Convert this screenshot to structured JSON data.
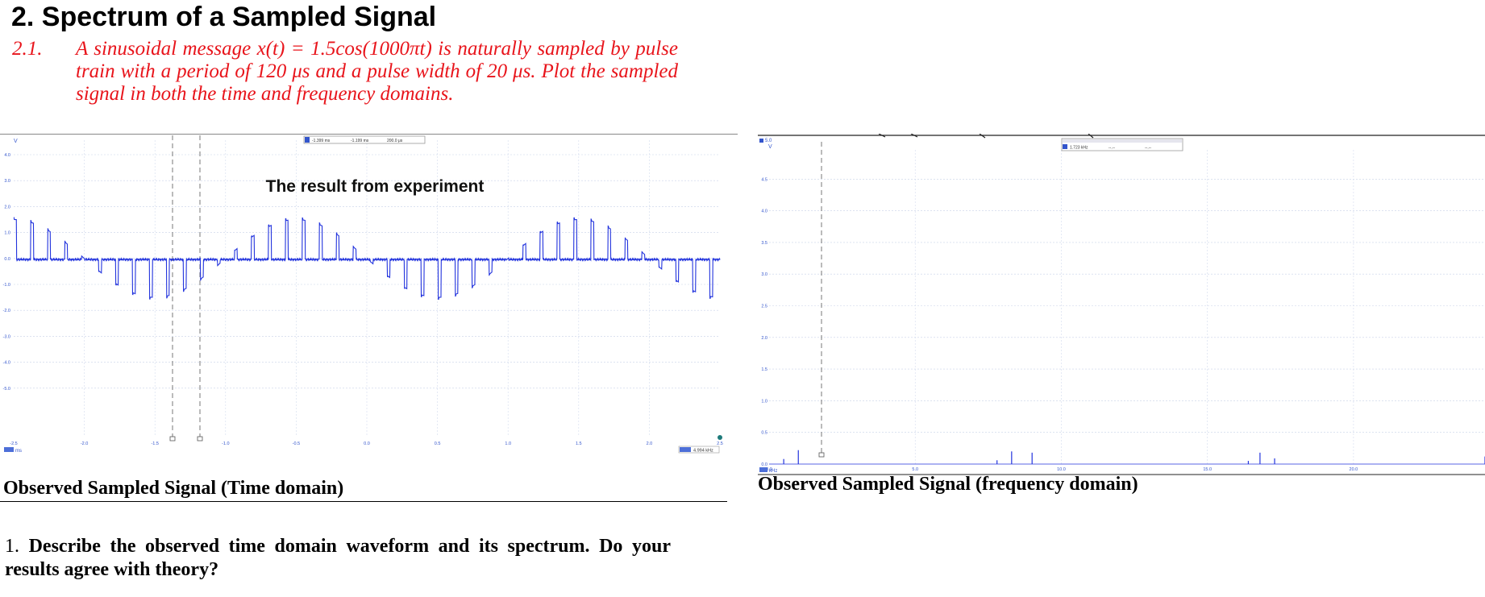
{
  "heading": "2. Spectrum of a Sampled Signal",
  "question_number": "2.1.",
  "question_text": "A sinusoidal message x(t) = 1.5cos(1000πt) is naturally sampled by pulse train with a period of 120 μs and a pulse width of 20 μs. Plot the sampled signal in both the time and frequency domains.",
  "time_scope": {
    "overlay_label": "The result from experiment",
    "unit_v": "V",
    "unit_ms": "ms",
    "y_ticks": [
      "4.0",
      "3.0",
      "2.0",
      "1.0",
      "0.0",
      "-1.0",
      "-2.0",
      "-3.0",
      "-4.0",
      "-5.0"
    ],
    "x_ticks": [
      "-2.5",
      "-2.0",
      "-1.5",
      "-1.0",
      "-0.5",
      "0.0",
      "0.5",
      "1.0",
      "1.5",
      "2.0",
      "2.5"
    ],
    "ruler_readouts": [
      "-1.399 ms",
      "-1.199 ms",
      "200.0 μs"
    ],
    "freq_readout": "4.994 kHz",
    "trace_color": "#2233dd"
  },
  "freq_scope": {
    "unit_v": "V",
    "unit_khz": "kHz",
    "top_value": "5.0",
    "y_ticks": [
      "4.5",
      "4.0",
      "3.5",
      "3.0",
      "2.5",
      "2.0",
      "1.5",
      "1.0",
      "0.5",
      "0.0"
    ],
    "x_ticks": [
      "0.0",
      "5.0",
      "10.0",
      "15.0",
      "20.0"
    ],
    "ruler_readouts": [
      "1.723 kHz",
      "--.--",
      "--.--"
    ],
    "trace_color": "#2233dd"
  },
  "chart_data": [
    {
      "type": "line",
      "title": "The result from experiment",
      "xlabel": "ms",
      "ylabel": "V",
      "xlim": [
        -2.5,
        2.5
      ],
      "ylim": [
        -5,
        4.5
      ],
      "grid": true,
      "description_values": {
        "message": "x(t) = 1.5cos(1000πt)",
        "sample_period_us": 120,
        "pulse_width_us": 20
      }
    },
    {
      "type": "bar",
      "xlabel": "kHz",
      "ylabel": "V",
      "xlim": [
        0,
        24
      ],
      "ylim": [
        0,
        5
      ],
      "grid": true,
      "peaks_khz": [
        0.5,
        1.0,
        7.8,
        8.3,
        9.0,
        16.4,
        16.8,
        17.3,
        24.5
      ],
      "peaks_v": [
        0.08,
        0.22,
        0.06,
        0.2,
        0.18,
        0.05,
        0.18,
        0.09,
        0.12
      ]
    }
  ],
  "captions": {
    "time": "Observed Sampled Signal (Time domain)",
    "freq": "Observed Sampled Signal (frequency domain)"
  },
  "question": {
    "number": "1.",
    "text": "Describe the observed time domain waveform and its spectrum. Do your results agree with theory?"
  }
}
